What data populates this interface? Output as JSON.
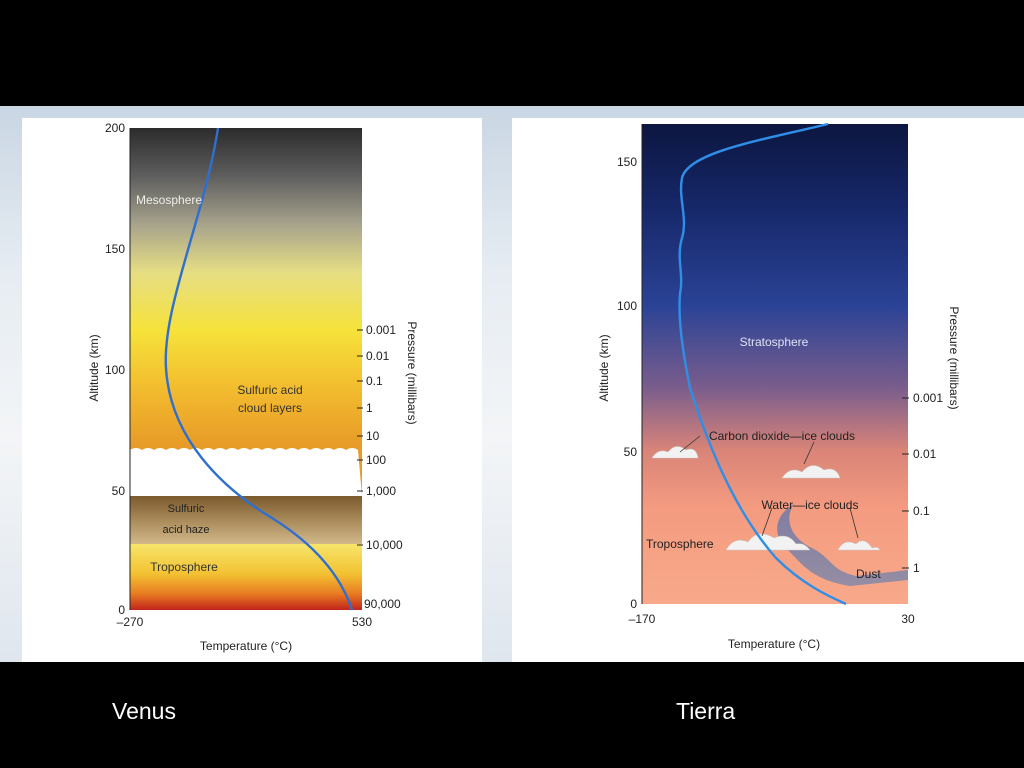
{
  "venus": {
    "caption": "Venus",
    "altitude_label": "Altitude (km)",
    "temperature_label": "Temperature (°C)",
    "pressure_label": "Pressure (millibars)",
    "altitude_ticks": [
      "200",
      "150",
      "100",
      "50",
      "0"
    ],
    "temp_min": "–270",
    "temp_max": "530",
    "pressure_ticks": [
      "0.001",
      "0.01",
      "0.1",
      "1",
      "10",
      "100",
      "1,000",
      "10,000",
      "90,000"
    ],
    "layers": {
      "mesosphere": "Mesosphere",
      "cloud_line1": "Sulfuric acid",
      "cloud_line2": "cloud layers",
      "haze_line1": "Sulfuric",
      "haze_line2": "acid haze",
      "troposphere": "Troposphere"
    }
  },
  "earth": {
    "caption": "Tierra",
    "altitude_label": "Altitude (km)",
    "temperature_label": "Temperature (°C)",
    "pressure_label": "Pressure (millibars)",
    "altitude_ticks": [
      "150",
      "100",
      "50",
      "0"
    ],
    "temp_min": "–170",
    "temp_max": "30",
    "pressure_ticks": [
      "0.001",
      "0.01",
      "0.1",
      "1"
    ],
    "layers": {
      "stratosphere": "Stratosphere",
      "co2_clouds": "Carbon dioxide—ice clouds",
      "water_clouds": "Water—ice clouds",
      "troposphere": "Troposphere",
      "dust": "Dust"
    }
  },
  "colors": {
    "profile_line": "#2f6fd0",
    "background": "#000000",
    "caption_text": "#ffffff"
  }
}
